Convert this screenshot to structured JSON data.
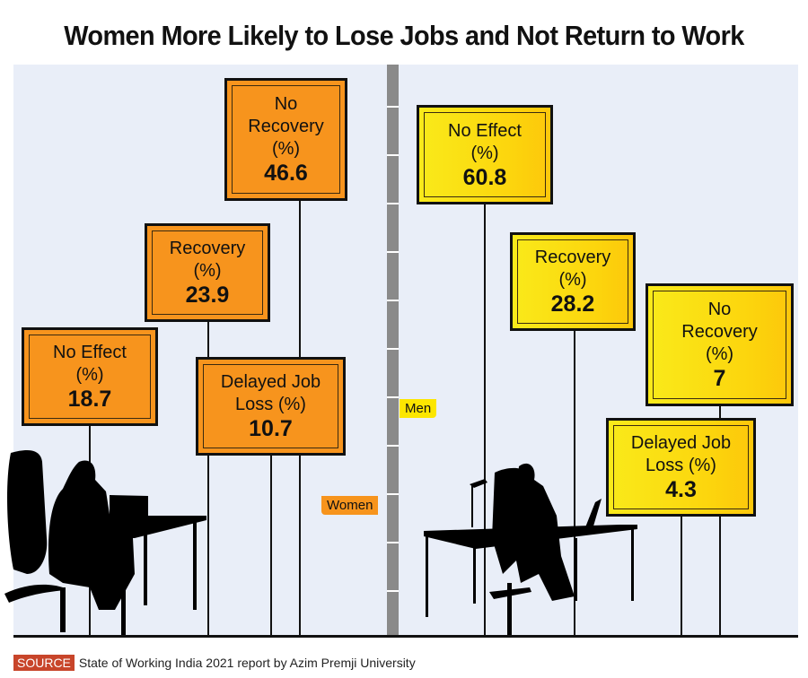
{
  "title": "Women More Likely to Lose Jobs and Not Return to Work",
  "source": {
    "badge": "SOURCE",
    "text": "State of Working India 2021 report by Azim Premji University"
  },
  "colors": {
    "women": "#f7941d",
    "men": "#fce600",
    "background": "#e9eef8",
    "pole": "#8a8a8a",
    "source_badge": "#c8452a"
  },
  "tags": {
    "men": "Men",
    "women": "Women"
  },
  "chart_data": {
    "type": "bar",
    "title": "Women More Likely to Lose Jobs and Not Return to Work",
    "xlabel": "",
    "ylabel": "%",
    "unit": "%",
    "categories": [
      "No Effect",
      "Recovery",
      "No Recovery",
      "Delayed Job Loss"
    ],
    "series": [
      {
        "name": "Women",
        "values": [
          18.7,
          23.9,
          46.6,
          10.7
        ],
        "labels": [
          "No Effect (%)",
          "Recovery (%)",
          "No Recovery (%)",
          "Delayed Job Loss (%)"
        ]
      },
      {
        "name": "Men",
        "values": [
          60.8,
          28.2,
          7,
          4.3
        ],
        "labels": [
          "No Effect (%)",
          "Recovery (%)",
          "No Recovery (%)",
          "Delayed Job Loss (%)"
        ]
      }
    ],
    "display": {
      "women": [
        {
          "label": "No Effect\n(%)",
          "value": "18.7"
        },
        {
          "label": "Recovery\n(%)",
          "value": "23.9"
        },
        {
          "label": "No\nRecovery\n(%)",
          "value": "46.6"
        },
        {
          "label": "Delayed Job\nLoss (%)",
          "value": "10.7"
        }
      ],
      "men": [
        {
          "label": "No Effect\n(%)",
          "value": "60.8"
        },
        {
          "label": "Recovery\n(%)",
          "value": "28.2"
        },
        {
          "label": "No\nRecovery\n(%)",
          "value": "7"
        },
        {
          "label": "Delayed Job\nLoss (%)",
          "value": "4.3"
        }
      ]
    },
    "legend": [
      "Women",
      "Men"
    ],
    "grid": false
  }
}
